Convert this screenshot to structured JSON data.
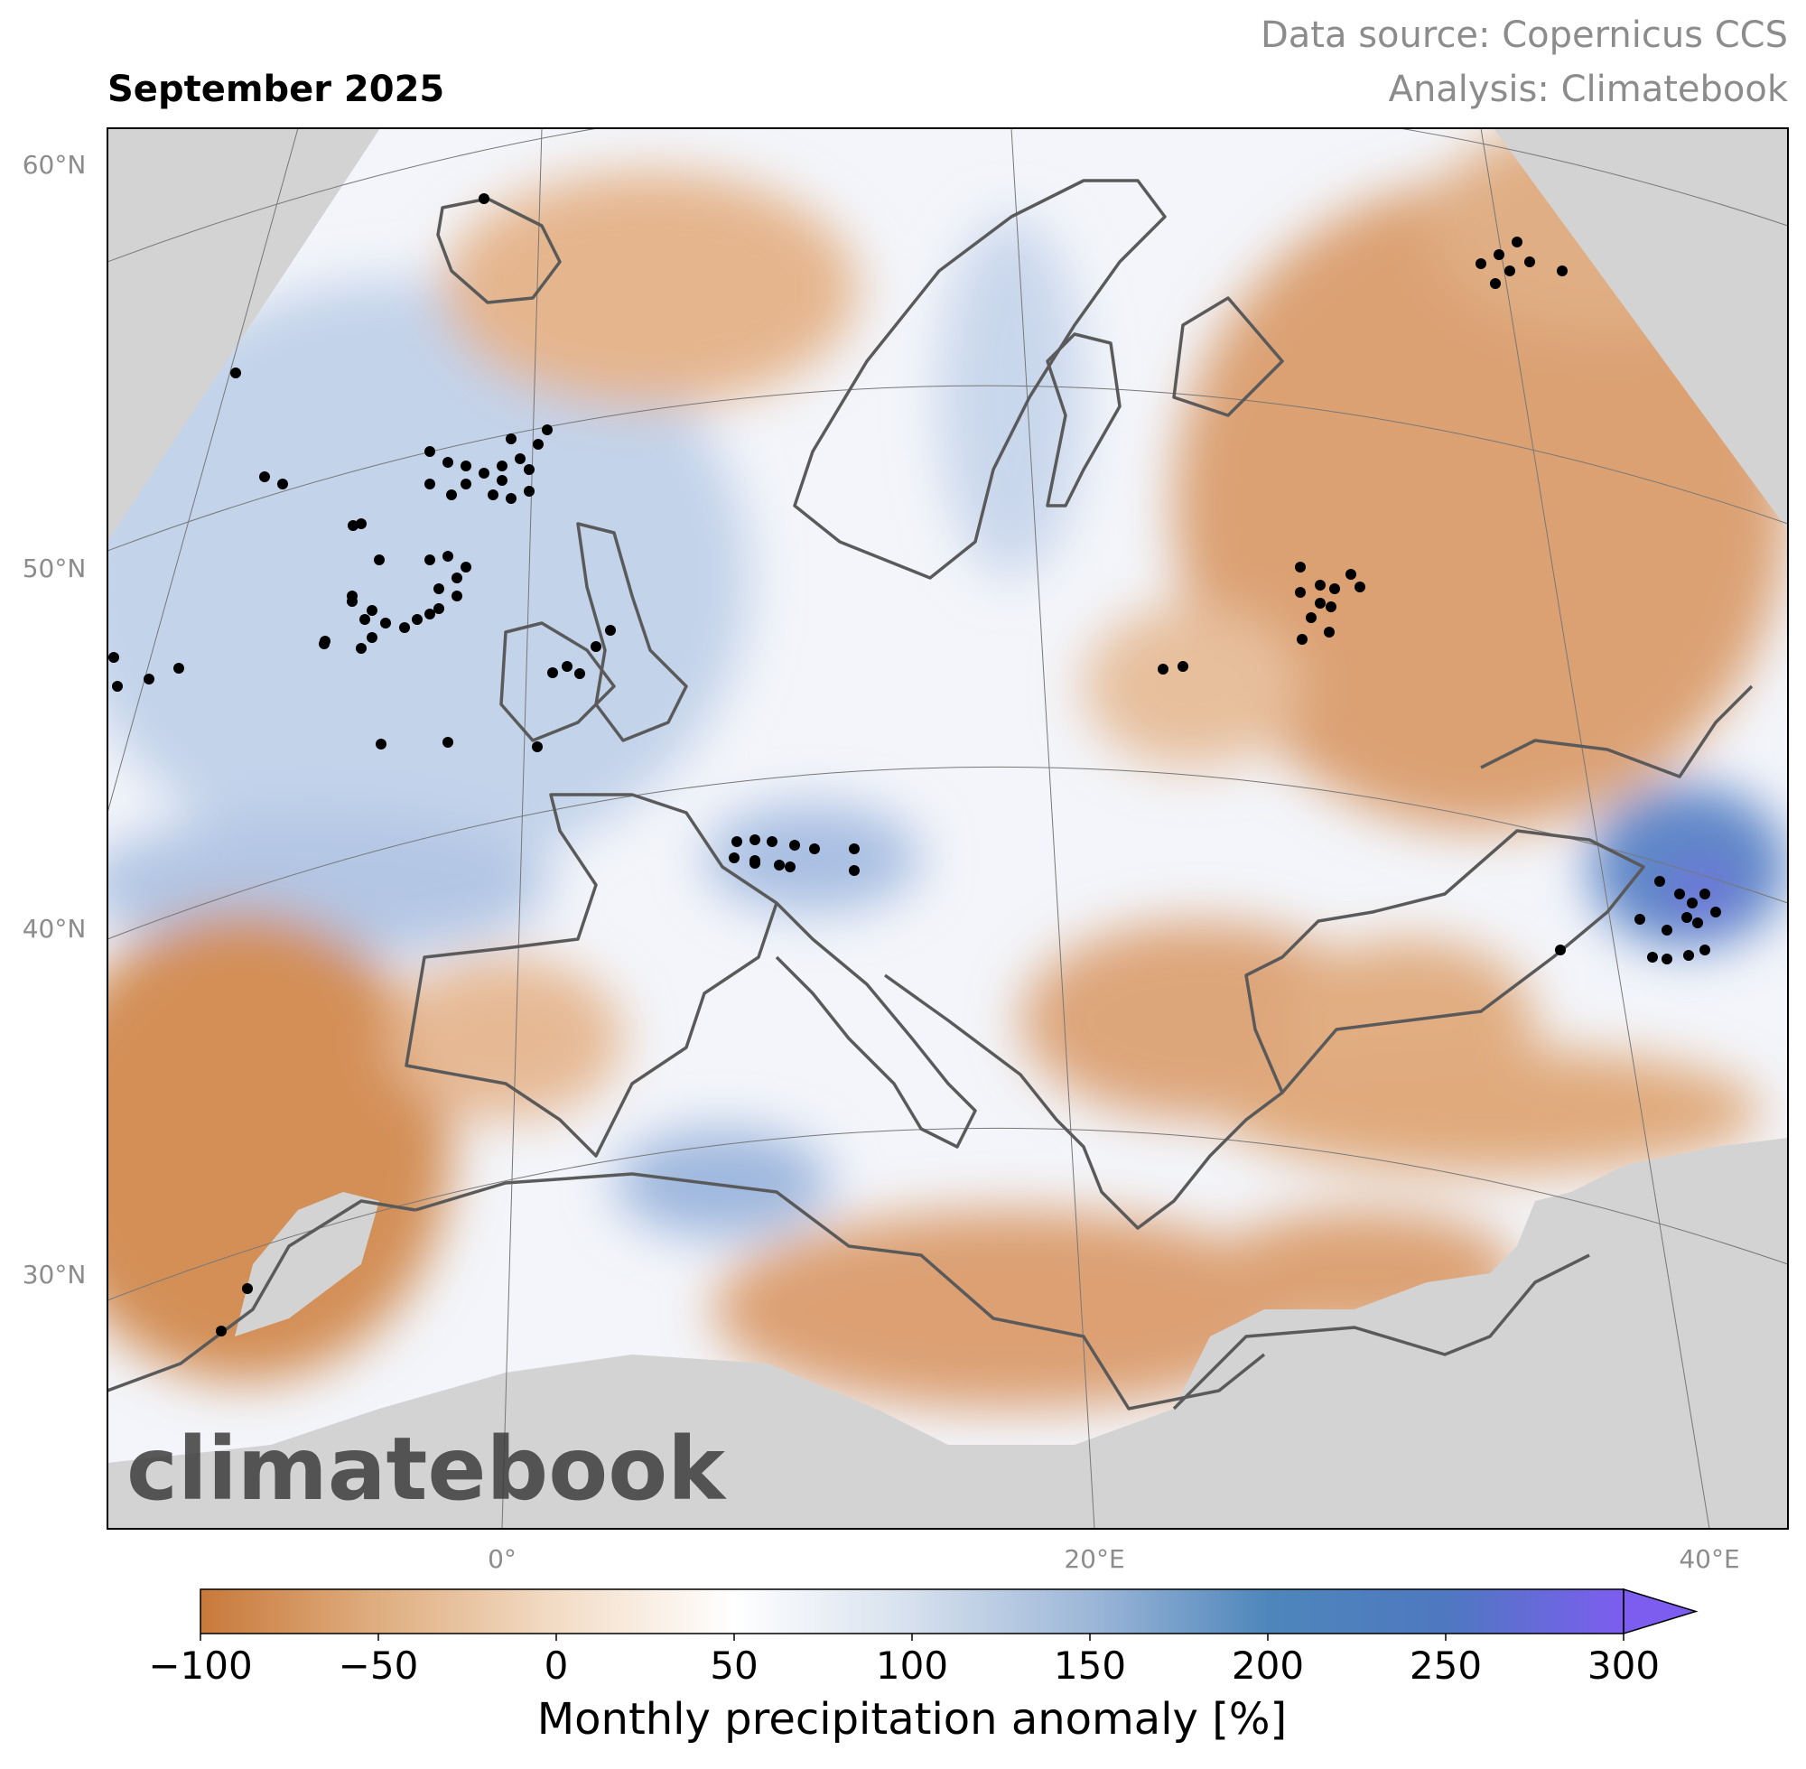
{
  "title": "September 2025",
  "source": [
    "Data source: Copernicus CCS",
    "Analysis: Climatebook"
  ],
  "watermark": "climatebook",
  "lat_labels": [
    "60°N",
    "50°N",
    "40°N",
    "30°N"
  ],
  "lon_labels": [
    "0°",
    "20°E",
    "40°E"
  ],
  "colorbar": {
    "label": "Monthly precipitation anomaly [%]",
    "lim": [
      -100,
      300
    ],
    "ticks": [
      {
        "value": -100,
        "label": "−100"
      },
      {
        "value": -50,
        "label": "−50"
      },
      0,
      50,
      100,
      150,
      200,
      250,
      300
    ],
    "extend": "max",
    "colors": [
      "#c8793a",
      "#dfae80",
      "#f3dcc6",
      "#ffffff",
      "#d6e0ee",
      "#9db7d8",
      "#4e86bb",
      "#4e78c0",
      "#7d5df0"
    ]
  }
}
